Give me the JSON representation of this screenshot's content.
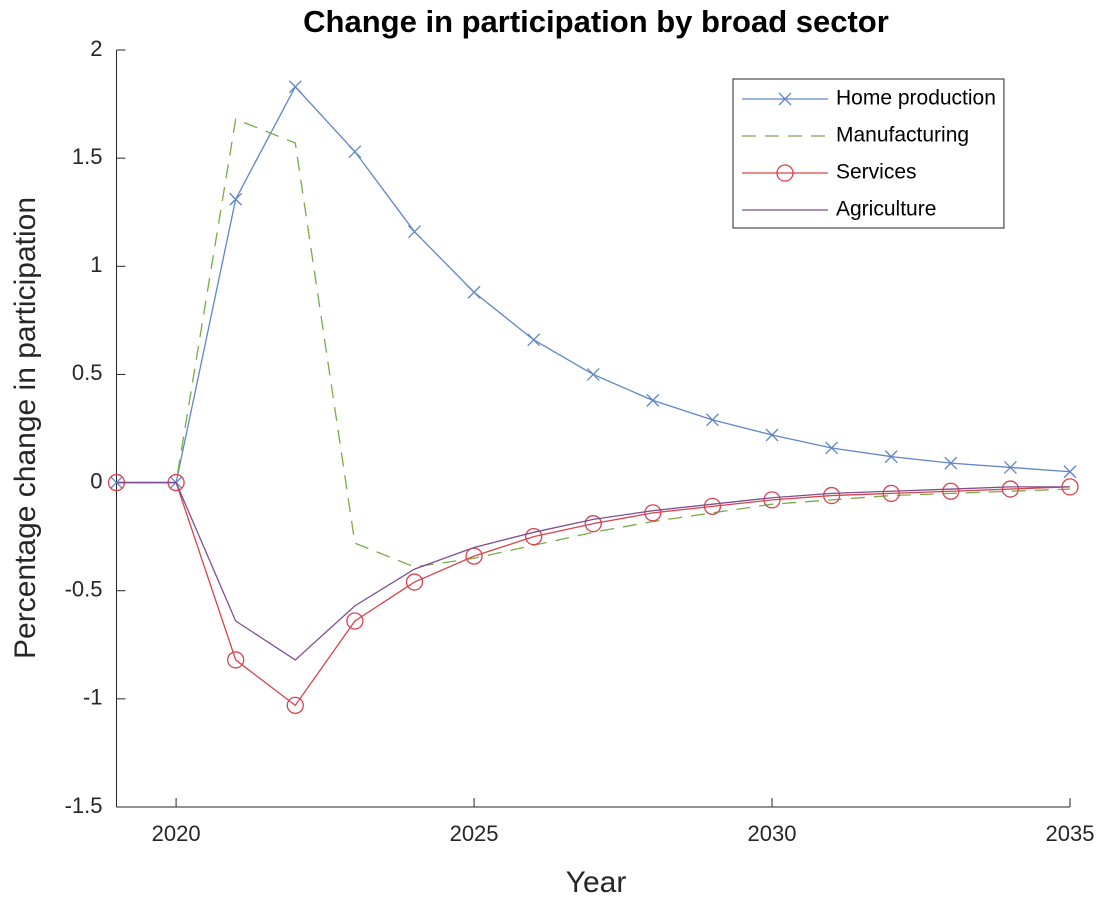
{
  "chart_data": {
    "type": "line",
    "title": "Change in participation by broad sector",
    "x_label": "Year",
    "y_label": "Percentage change in participation",
    "x": [
      2019,
      2020,
      2021,
      2022,
      2023,
      2024,
      2025,
      2026,
      2027,
      2028,
      2029,
      2030,
      2031,
      2032,
      2033,
      2034,
      2035
    ],
    "series": [
      {
        "name": "Home production",
        "color": "#5f86c6",
        "linestyle": "solid",
        "marker": "x",
        "values": [
          0,
          0,
          1.31,
          1.83,
          1.53,
          1.16,
          0.88,
          0.66,
          0.5,
          0.38,
          0.29,
          0.22,
          0.16,
          0.12,
          0.09,
          0.07,
          0.05
        ]
      },
      {
        "name": "Manufacturing",
        "color": "#77ac48",
        "linestyle": "dashed",
        "marker": "none",
        "values": [
          0,
          0,
          1.68,
          1.57,
          -0.28,
          -0.39,
          -0.35,
          -0.29,
          -0.23,
          -0.18,
          -0.14,
          -0.1,
          -0.08,
          -0.06,
          -0.05,
          -0.04,
          -0.03
        ]
      },
      {
        "name": "Services",
        "color": "#d9434d",
        "linestyle": "solid",
        "marker": "o",
        "values": [
          0,
          0,
          -0.82,
          -1.03,
          -0.64,
          -0.46,
          -0.34,
          -0.25,
          -0.19,
          -0.14,
          -0.11,
          -0.08,
          -0.06,
          -0.05,
          -0.04,
          -0.03,
          -0.02
        ]
      },
      {
        "name": "Agriculture",
        "color": "#7e4f8f",
        "linestyle": "solid",
        "marker": "none",
        "values": [
          0,
          0,
          -0.64,
          -0.82,
          -0.57,
          -0.4,
          -0.3,
          -0.23,
          -0.17,
          -0.13,
          -0.1,
          -0.07,
          -0.05,
          -0.04,
          -0.03,
          -0.02,
          -0.02
        ]
      }
    ],
    "xlim": [
      2019,
      2035
    ],
    "xticks": [
      2020,
      2025,
      2030,
      2035
    ],
    "ylim": [
      -1.5,
      2
    ],
    "yticks": [
      -1.5,
      -1,
      -0.5,
      0,
      0.5,
      1,
      1.5,
      2
    ],
    "grid": false,
    "legend": "top-right"
  }
}
